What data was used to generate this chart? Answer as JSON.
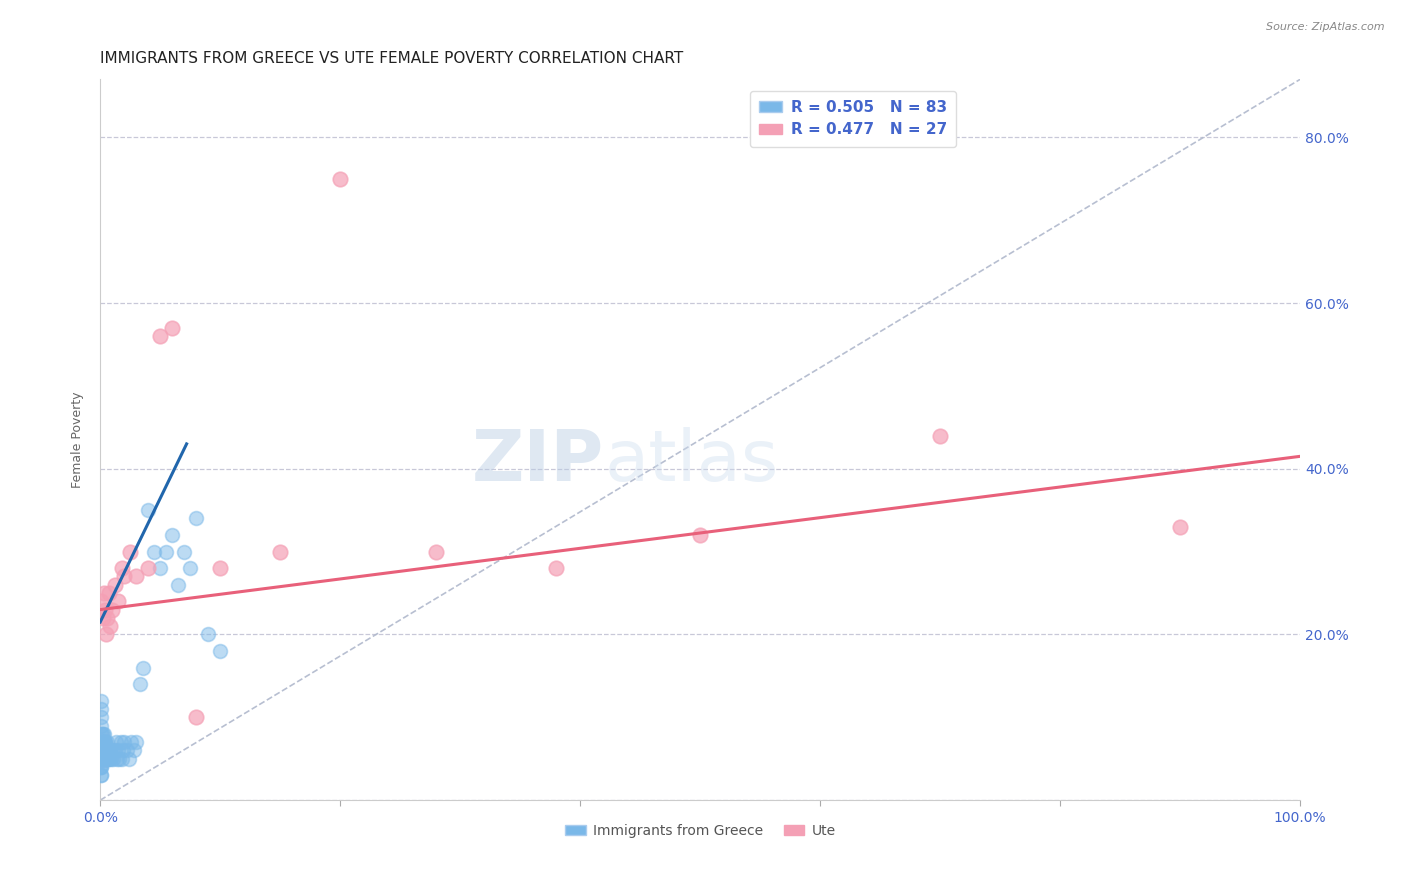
{
  "title": "IMMIGRANTS FROM GREECE VS UTE FEMALE POVERTY CORRELATION CHART",
  "source": "Source: ZipAtlas.com",
  "ylabel": "Female Poverty",
  "legend_label1": "Immigrants from Greece",
  "legend_label2": "Ute",
  "R1": 0.505,
  "N1": 83,
  "R2": 0.477,
  "N2": 27,
  "color_blue": "#7ab8e8",
  "color_pink": "#f4a0b5",
  "color_blue_line": "#2166ac",
  "color_pink_line": "#e8607a",
  "color_axis_labels": "#4466cc",
  "xlim": [
    0.0,
    1.0
  ],
  "ylim": [
    0.0,
    0.87
  ],
  "yticks": [
    0.0,
    0.2,
    0.4,
    0.6,
    0.8
  ],
  "ytick_labels_right": [
    "",
    "20.0%",
    "40.0%",
    "60.0%",
    "80.0%"
  ],
  "xticks": [
    0.0,
    0.2,
    0.4,
    0.6,
    0.8,
    1.0
  ],
  "xtick_labels": [
    "0.0%",
    "",
    "",
    "",
    "",
    "100.0%"
  ],
  "blue_x": [
    0.0002,
    0.0003,
    0.0004,
    0.0005,
    0.0005,
    0.0006,
    0.0007,
    0.0008,
    0.0009,
    0.001,
    0.001,
    0.001,
    0.001,
    0.001,
    0.001,
    0.001,
    0.001,
    0.0012,
    0.0013,
    0.0014,
    0.0015,
    0.0016,
    0.0017,
    0.0018,
    0.0019,
    0.002,
    0.002,
    0.002,
    0.002,
    0.0022,
    0.0024,
    0.0025,
    0.0026,
    0.0028,
    0.003,
    0.003,
    0.003,
    0.0032,
    0.0034,
    0.0036,
    0.004,
    0.004,
    0.0042,
    0.0045,
    0.005,
    0.005,
    0.0055,
    0.006,
    0.006,
    0.0065,
    0.007,
    0.0075,
    0.008,
    0.009,
    0.01,
    0.011,
    0.012,
    0.013,
    0.014,
    0.015,
    0.016,
    0.017,
    0.018,
    0.019,
    0.02,
    0.022,
    0.024,
    0.026,
    0.028,
    0.03,
    0.033,
    0.036,
    0.04,
    0.045,
    0.05,
    0.055,
    0.06,
    0.065,
    0.07,
    0.075,
    0.08,
    0.09,
    0.1
  ],
  "blue_y": [
    0.04,
    0.05,
    0.03,
    0.06,
    0.04,
    0.05,
    0.03,
    0.06,
    0.04,
    0.05,
    0.06,
    0.07,
    0.08,
    0.09,
    0.1,
    0.11,
    0.12,
    0.05,
    0.06,
    0.07,
    0.08,
    0.06,
    0.05,
    0.07,
    0.06,
    0.05,
    0.06,
    0.07,
    0.08,
    0.06,
    0.05,
    0.07,
    0.06,
    0.05,
    0.06,
    0.07,
    0.08,
    0.06,
    0.05,
    0.07,
    0.06,
    0.07,
    0.05,
    0.06,
    0.05,
    0.06,
    0.05,
    0.06,
    0.07,
    0.05,
    0.06,
    0.05,
    0.06,
    0.05,
    0.06,
    0.05,
    0.06,
    0.07,
    0.05,
    0.06,
    0.05,
    0.07,
    0.05,
    0.06,
    0.07,
    0.06,
    0.05,
    0.07,
    0.06,
    0.07,
    0.14,
    0.16,
    0.35,
    0.3,
    0.28,
    0.3,
    0.32,
    0.26,
    0.3,
    0.28,
    0.34,
    0.2,
    0.18
  ],
  "pink_x": [
    0.001,
    0.002,
    0.003,
    0.004,
    0.005,
    0.006,
    0.007,
    0.008,
    0.01,
    0.012,
    0.015,
    0.018,
    0.02,
    0.025,
    0.03,
    0.04,
    0.05,
    0.06,
    0.08,
    0.1,
    0.15,
    0.2,
    0.28,
    0.38,
    0.5,
    0.7,
    0.9
  ],
  "pink_y": [
    0.24,
    0.22,
    0.25,
    0.23,
    0.2,
    0.22,
    0.25,
    0.21,
    0.23,
    0.26,
    0.24,
    0.28,
    0.27,
    0.3,
    0.27,
    0.28,
    0.56,
    0.57,
    0.1,
    0.28,
    0.3,
    0.75,
    0.3,
    0.28,
    0.32,
    0.44,
    0.33
  ],
  "blue_line_x": [
    0.0,
    0.072
  ],
  "blue_line_y": [
    0.215,
    0.43
  ],
  "pink_line_x": [
    0.0,
    1.0
  ],
  "pink_line_y": [
    0.23,
    0.415
  ],
  "diag_line_x": [
    0.0,
    1.0
  ],
  "diag_line_y": [
    0.0,
    0.87
  ],
  "background_color": "#ffffff",
  "grid_color": "#c8c8d8",
  "title_fontsize": 11,
  "axis_label_fontsize": 9,
  "tick_fontsize": 10,
  "legend_fontsize": 11
}
